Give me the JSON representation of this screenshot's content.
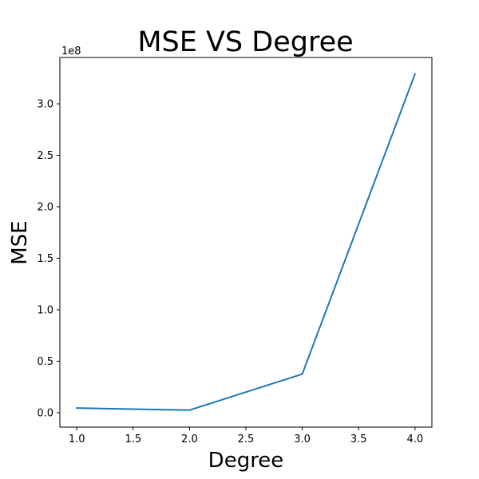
{
  "chart_data": {
    "type": "line",
    "title": "MSE VS Degree",
    "xlabel": "Degree",
    "ylabel": "MSE",
    "y_offset_label": "1e8",
    "x": [
      1.0,
      2.0,
      3.0,
      4.0
    ],
    "series": [
      {
        "values": [
          4500000.0,
          2500000.0,
          37500000.0,
          329000000.0
        ],
        "color": "#1f77b4"
      }
    ],
    "xlim": [
      0.85,
      4.15
    ],
    "ylim": [
      -14000000.0,
      345000000.0
    ],
    "x_ticks": [
      1.0,
      1.5,
      2.0,
      2.5,
      3.0,
      3.5,
      4.0
    ],
    "x_tick_labels": [
      "1.0",
      "1.5",
      "2.0",
      "2.5",
      "3.0",
      "3.5",
      "4.0"
    ],
    "y_ticks": [
      0,
      50000000.0,
      100000000.0,
      150000000.0,
      200000000.0,
      250000000.0,
      300000000.0
    ],
    "y_tick_labels": [
      "0.0",
      "0.5",
      "1.0",
      "1.5",
      "2.0",
      "2.5",
      "3.0"
    ],
    "grid": false,
    "legend": "none"
  }
}
